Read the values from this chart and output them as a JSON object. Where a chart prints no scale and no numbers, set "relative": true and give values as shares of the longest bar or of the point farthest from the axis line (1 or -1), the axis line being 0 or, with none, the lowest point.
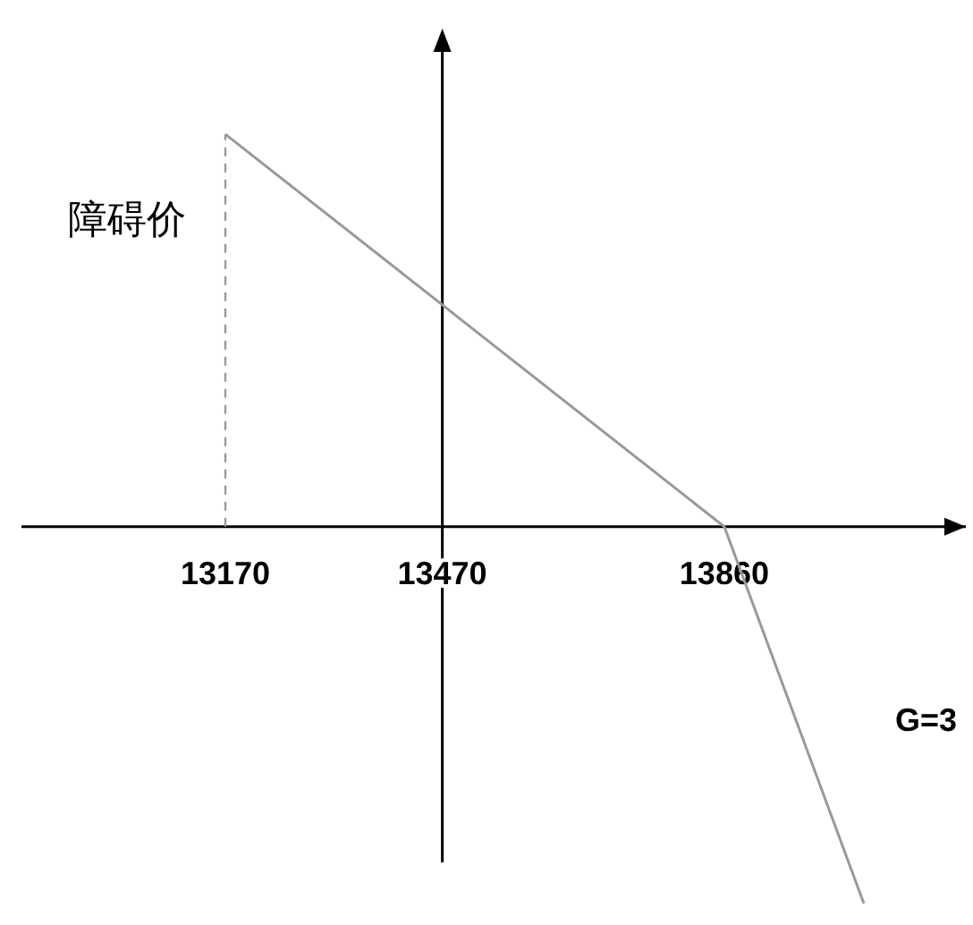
{
  "chart_data": {
    "type": "line",
    "relative": true,
    "xlim": [
      12888,
      14194
    ],
    "xticks": [
      13170,
      13470,
      13860
    ],
    "series": [
      {
        "color": "#999999",
        "x": [
          13170,
          13860,
          14053
        ],
        "values": [
          1,
          0,
          -0.96
        ]
      }
    ],
    "ref_lines": [
      {
        "axis": "x",
        "value": 13170,
        "label": "障碍价",
        "line_style": "dashed",
        "color": "#999999"
      }
    ],
    "annotations": [
      "G=3"
    ],
    "marker": "none",
    "line_style": "solid"
  }
}
